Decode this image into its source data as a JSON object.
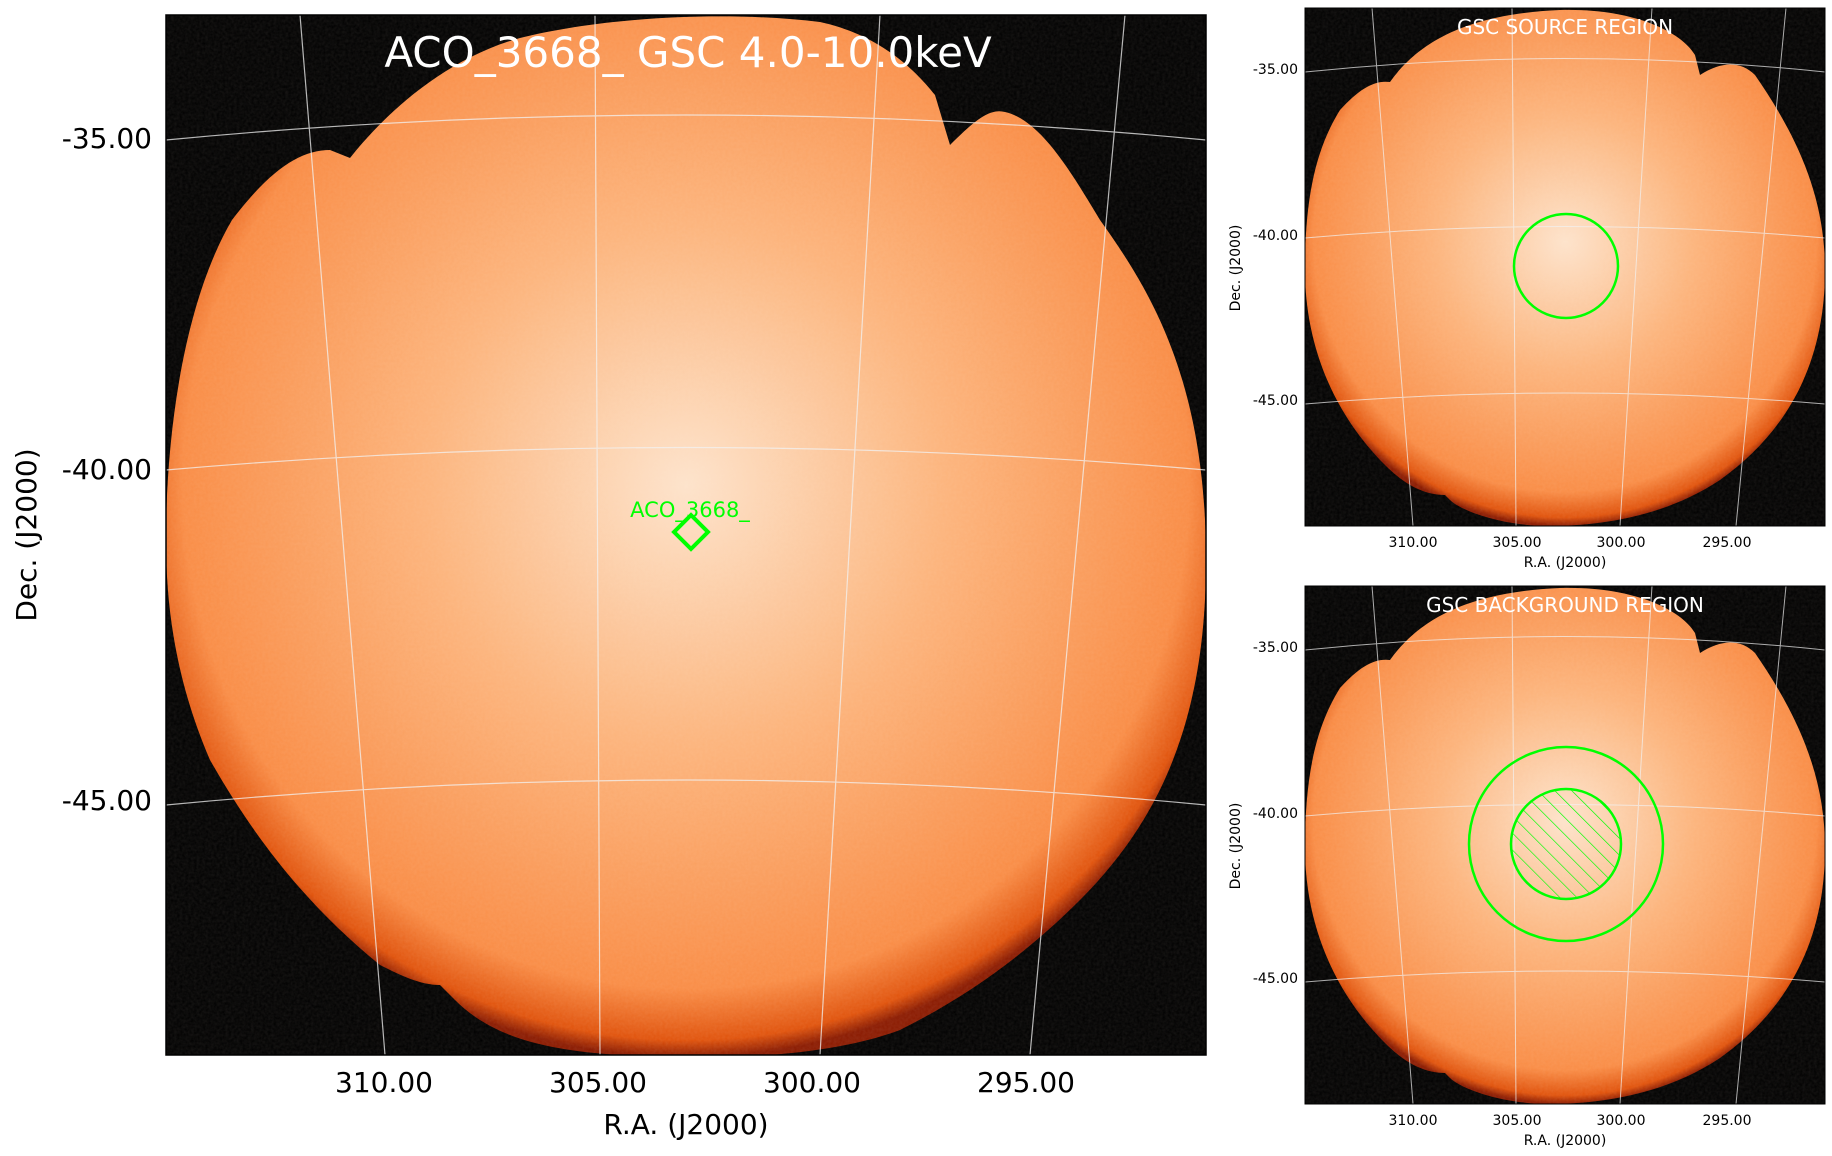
{
  "colors": {
    "frame_bg": "#000000",
    "field_center": "#fde0c6",
    "field_mid": "#fca869",
    "field_edge": "#e65a0d",
    "region_green": "#00ff00",
    "grid_line": "#f2f2f2"
  },
  "main_panel": {
    "title": "ACO_3668_ GSC 4.0-10.0keV",
    "xlabel": "R.A. (J2000)",
    "ylabel": "Dec. (J2000)",
    "ra_ticks": [
      "310.00",
      "305.00",
      "300.00",
      "295.00"
    ],
    "dec_ticks": [
      "-35.00",
      "-40.00",
      "-45.00"
    ],
    "source_marker": {
      "label": "ACO_3668_",
      "shape": "diamond-icon"
    }
  },
  "source_panel": {
    "title": "GSC SOURCE REGION",
    "xlabel": "R.A. (J2000)",
    "ylabel": "Dec. (J2000)",
    "ra_ticks": [
      "310.00",
      "305.00",
      "300.00",
      "295.00"
    ],
    "dec_ticks": [
      "-35.00",
      "-40.00",
      "-45.00"
    ]
  },
  "background_panel": {
    "title": "GSC BACKGROUND REGION",
    "xlabel": "R.A. (J2000)",
    "ylabel": "Dec. (J2000)",
    "ra_ticks": [
      "310.00",
      "305.00",
      "300.00",
      "295.00"
    ],
    "dec_ticks": [
      "-35.00",
      "-40.00",
      "-45.00"
    ]
  }
}
